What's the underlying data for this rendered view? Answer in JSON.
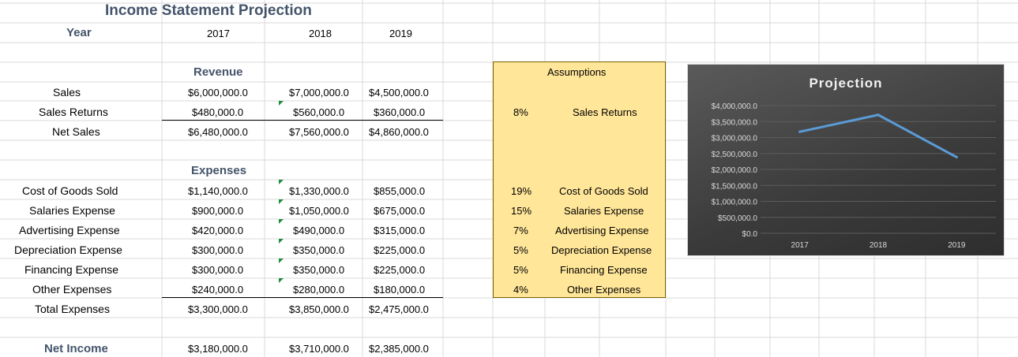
{
  "title": "Income Statement Projection",
  "header": {
    "label": "Year",
    "years": [
      "2017",
      "2018",
      "2019"
    ]
  },
  "revenue": {
    "heading": "Revenue",
    "rows": [
      {
        "label": "Sales",
        "values": [
          "$6,000,000.0",
          "$7,000,000.0",
          "$4,500,000.0"
        ]
      },
      {
        "label": "Sales Returns",
        "values": [
          "$480,000.0",
          "$560,000.0",
          "$360,000.0"
        ]
      },
      {
        "label": "Net Sales",
        "values": [
          "$6,480,000.0",
          "$7,560,000.0",
          "$4,860,000.0"
        ]
      }
    ]
  },
  "expenses": {
    "heading": "Expenses",
    "rows": [
      {
        "label": "Cost of Goods Sold",
        "values": [
          "$1,140,000.0",
          "$1,330,000.0",
          "$855,000.0"
        ]
      },
      {
        "label": "Salaries Expense",
        "values": [
          "$900,000.0",
          "$1,050,000.0",
          "$675,000.0"
        ]
      },
      {
        "label": "Advertising Expense",
        "values": [
          "$420,000.0",
          "$490,000.0",
          "$315,000.0"
        ]
      },
      {
        "label": "Depreciation Expense",
        "values": [
          "$300,000.0",
          "$350,000.0",
          "$225,000.0"
        ]
      },
      {
        "label": "Financing Expense",
        "values": [
          "$300,000.0",
          "$350,000.0",
          "$225,000.0"
        ]
      },
      {
        "label": "Other Expenses",
        "values": [
          "$240,000.0",
          "$280,000.0",
          "$180,000.0"
        ]
      },
      {
        "label": "Total Expenses",
        "values": [
          "$3,300,000.0",
          "$3,850,000.0",
          "$2,475,000.0"
        ]
      }
    ]
  },
  "net_income": {
    "label": "Net Income",
    "values": [
      "$3,180,000.0",
      "$3,710,000.0",
      "$2,385,000.0"
    ]
  },
  "assumptions": {
    "heading": "Assumptions",
    "items": [
      {
        "pct": "8%",
        "label": "Sales Returns"
      },
      {
        "pct": "19%",
        "label": "Cost of Goods Sold"
      },
      {
        "pct": "15%",
        "label": "Salaries Expense"
      },
      {
        "pct": "7%",
        "label": "Advertising Expense"
      },
      {
        "pct": "5%",
        "label": "Depreciation Expense"
      },
      {
        "pct": "5%",
        "label": "Financing Expense"
      },
      {
        "pct": "4%",
        "label": "Other Expenses"
      }
    ]
  },
  "chart_data": {
    "type": "line",
    "title": "Projection",
    "categories": [
      "2017",
      "2018",
      "2019"
    ],
    "series": [
      {
        "values": [
          3180000,
          3710000,
          2385000
        ]
      }
    ],
    "ylim": [
      0,
      4000000
    ],
    "yticks": [
      0,
      500000,
      1000000,
      1500000,
      2000000,
      2500000,
      3000000,
      3500000,
      4000000
    ],
    "ytick_labels": [
      "$0.0",
      "$500,000.0",
      "$1,000,000.0",
      "$1,500,000.0",
      "$2,000,000.0",
      "$2,500,000.0",
      "$3,000,000.0",
      "$3,500,000.0",
      "$4,000,000.0"
    ],
    "line_color": "#5b9bd5",
    "background": "#404040"
  }
}
